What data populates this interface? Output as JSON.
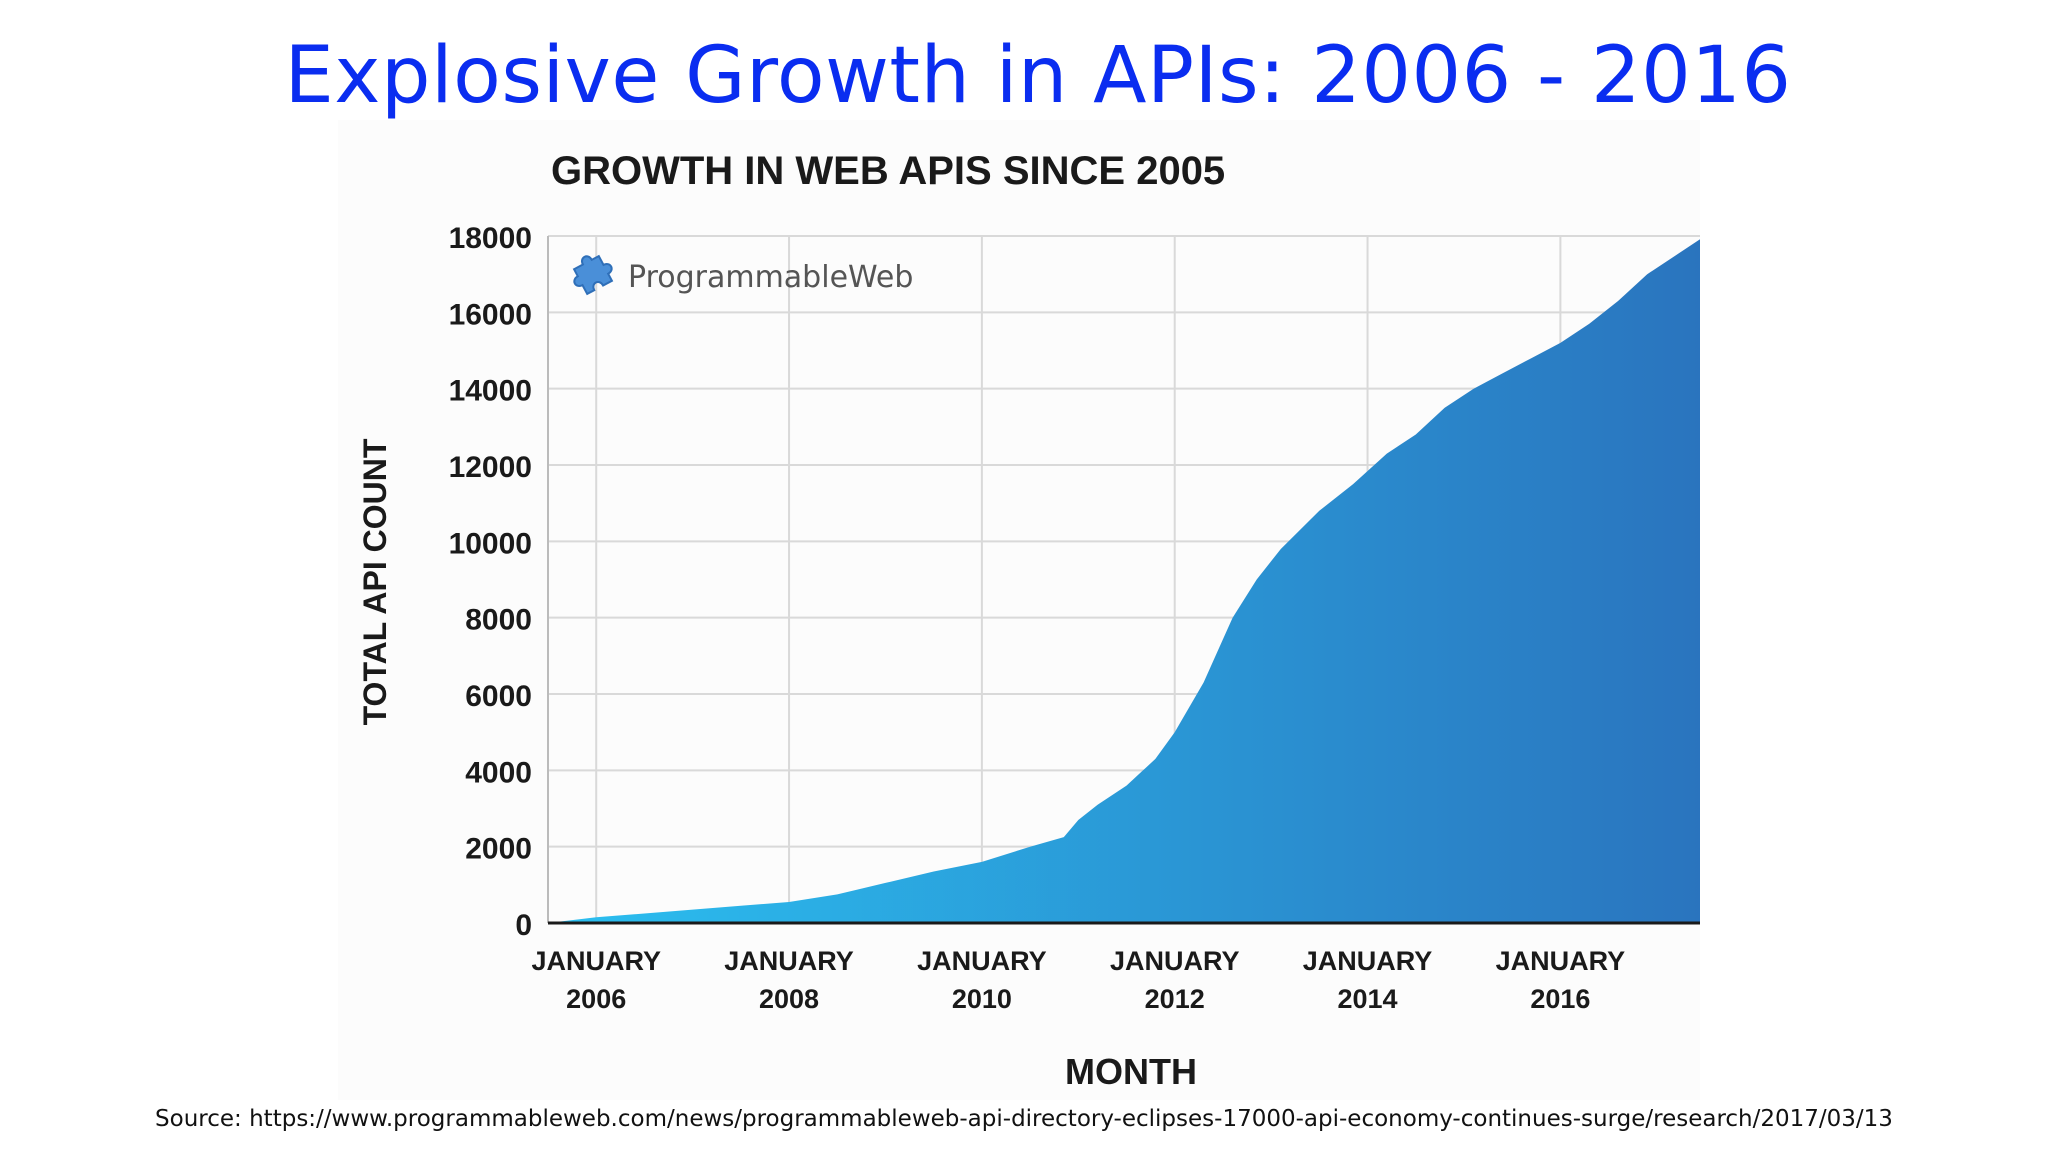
{
  "slide": {
    "title": "Explosive Growth in APIs: 2006 - 2016",
    "source": "Source: https://www.programmableweb.com/news/programmableweb-api-directory-eclipses-17000-api-economy-continues-surge/research/2017/03/13"
  },
  "logo": {
    "text": "ProgrammableWeb",
    "icon": "puzzle-piece-icon",
    "color": "#4a8fd8"
  },
  "colors": {
    "title": "#0a2df0",
    "area_start": "#2bbff0",
    "area_end": "#2a74be",
    "grid": "#d9d9d9",
    "axis": "#1a1a1a"
  },
  "chart_data": {
    "type": "area",
    "title": "GROWTH IN WEB APIS SINCE 2005",
    "xlabel": "MONTH",
    "ylabel": "TOTAL API COUNT",
    "ylim": [
      0,
      18000
    ],
    "xlim": [
      2005.5,
      2017.5
    ],
    "yticks": [
      0,
      2000,
      4000,
      6000,
      8000,
      10000,
      12000,
      14000,
      16000,
      18000
    ],
    "xticks": [
      {
        "value": 2006,
        "line1": "JANUARY",
        "line2": "2006"
      },
      {
        "value": 2008,
        "line1": "JANUARY",
        "line2": "2008"
      },
      {
        "value": 2010,
        "line1": "JANUARY",
        "line2": "2010"
      },
      {
        "value": 2012,
        "line1": "JANUARY",
        "line2": "2012"
      },
      {
        "value": 2014,
        "line1": "JANUARY",
        "line2": "2014"
      },
      {
        "value": 2016,
        "line1": "JANUARY",
        "line2": "2016"
      }
    ],
    "series": [
      {
        "name": "Total API Count",
        "x": [
          2005.5,
          2006.0,
          2006.5,
          2007.0,
          2007.5,
          2008.0,
          2008.5,
          2009.0,
          2009.5,
          2010.0,
          2010.5,
          2010.85,
          2011.0,
          2011.2,
          2011.5,
          2011.8,
          2012.0,
          2012.3,
          2012.6,
          2012.85,
          2013.1,
          2013.5,
          2013.85,
          2014.2,
          2014.5,
          2014.8,
          2015.1,
          2015.4,
          2015.7,
          2016.0,
          2016.3,
          2016.6,
          2016.9,
          2017.2,
          2017.5
        ],
        "values": [
          0,
          150,
          250,
          350,
          450,
          550,
          750,
          1050,
          1350,
          1600,
          2000,
          2250,
          2700,
          3100,
          3600,
          4300,
          5000,
          6300,
          8000,
          9000,
          9800,
          10800,
          11500,
          12300,
          12800,
          13500,
          14000,
          14400,
          14800,
          15200,
          15700,
          16300,
          17000,
          17500,
          18000
        ]
      }
    ]
  }
}
